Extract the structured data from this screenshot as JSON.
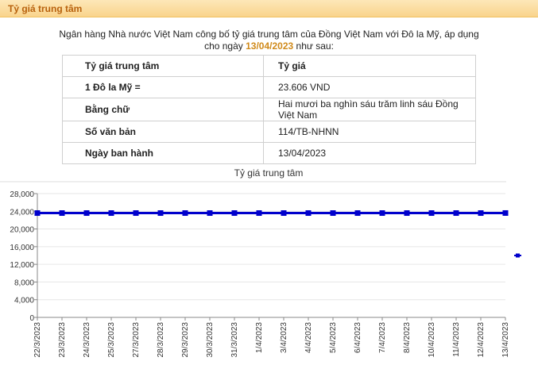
{
  "header": {
    "title": "Tỷ giá trung tâm"
  },
  "intro": {
    "line1": "Ngân hàng Nhà nước Việt Nam công bố tỷ giá trung tâm của Đồng Việt Nam với Đô la Mỹ, áp dụng",
    "line2_prefix": "cho ngày ",
    "line2_date": "13/04/2023",
    "line2_suffix": " như sau:"
  },
  "table": {
    "header": [
      "Tỷ giá trung tâm",
      "Tỷ giá"
    ],
    "rows": [
      [
        "1 Đô la Mỹ =",
        "23.606 VND"
      ],
      [
        "Bằng chữ",
        "Hai mươi ba nghìn sáu trăm linh sáu Đồng Việt Nam"
      ],
      [
        "Số văn bản",
        "114/TB-NHNN"
      ],
      [
        "Ngày ban hành",
        "13/04/2023"
      ]
    ]
  },
  "colors": {
    "series": "#0000cc",
    "header_text": "#b8620e",
    "date_highlight": "#d08a1a"
  },
  "chart_data": {
    "type": "line",
    "title": "Tỷ giá trung tâm",
    "xlabel": "",
    "ylabel": "",
    "ylim": [
      0,
      28000
    ],
    "yticks": [
      0,
      4000,
      8000,
      12000,
      16000,
      20000,
      24000,
      28000
    ],
    "ytick_labels": [
      "0",
      "4,000",
      "8,000",
      "12,000",
      "16,000",
      "20,000",
      "24,000",
      "28,000"
    ],
    "grid": true,
    "legend": "right",
    "categories": [
      "22/3/2023",
      "23/3/2023",
      "24/3/2023",
      "25/3/2023",
      "27/3/2023",
      "28/3/2023",
      "29/3/2023",
      "30/3/2023",
      "31/3/2023",
      "1/4/2023",
      "3/4/2023",
      "4/4/2023",
      "5/4/2023",
      "6/4/2023",
      "7/4/2023",
      "8/4/2023",
      "10/4/2023",
      "11/4/2023",
      "12/4/2023",
      "13/4/2023"
    ],
    "series": [
      {
        "name": "",
        "values": [
          23600,
          23600,
          23600,
          23600,
          23600,
          23600,
          23600,
          23600,
          23600,
          23600,
          23600,
          23600,
          23600,
          23600,
          23600,
          23600,
          23600,
          23600,
          23600,
          23606
        ]
      }
    ]
  }
}
